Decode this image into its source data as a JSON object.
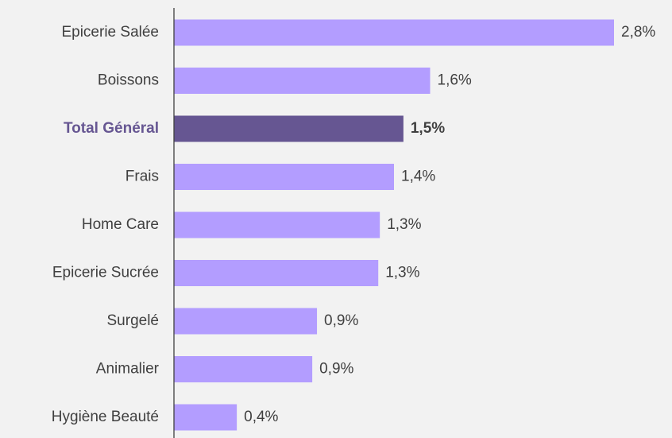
{
  "chart_data": {
    "type": "bar",
    "orientation": "horizontal",
    "categories": [
      "Epicerie Salée",
      "Boissons",
      "Total Général",
      "Frais",
      "Home Care",
      "Epicerie Sucrée",
      "Surgelé",
      "Animalier",
      "Hygiène Beauté"
    ],
    "values": [
      2.8,
      1.63,
      1.46,
      1.4,
      1.31,
      1.3,
      0.91,
      0.88,
      0.4
    ],
    "value_labels": [
      "2,8%",
      "1,6%",
      "1,5%",
      "1,4%",
      "1,3%",
      "1,3%",
      "0,9%",
      "0,9%",
      "0,4%"
    ],
    "color": "#b39dff",
    "colors": [
      "#b39dff",
      "#b39dff",
      "#665692",
      "#b39dff",
      "#b39dff",
      "#b39dff",
      "#b39dff",
      "#b39dff",
      "#b39dff"
    ],
    "xlim": [
      0,
      2.8
    ]
  }
}
